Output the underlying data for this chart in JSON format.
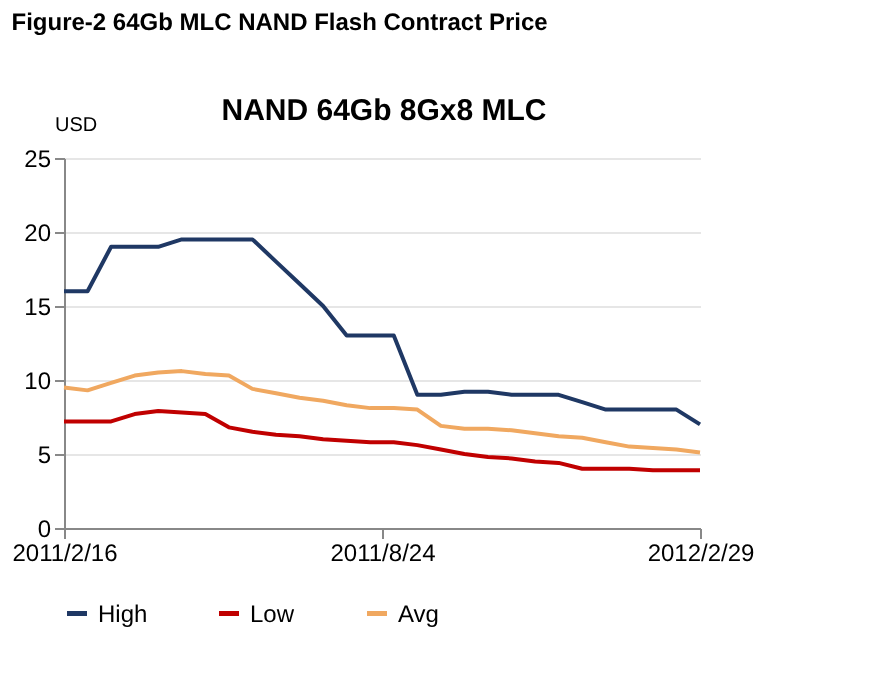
{
  "chart_data": {
    "type": "line",
    "title": "Figure-2 64Gb MLC NAND Flash Contract Price",
    "subtitle": "NAND 64Gb 8Gx8 MLC",
    "ylabel": "USD",
    "x": [
      "2011-02-16",
      "2011-03-02",
      "2011-03-16",
      "2011-03-30",
      "2011-04-13",
      "2011-04-27",
      "2011-05-11",
      "2011-05-25",
      "2011-06-08",
      "2011-06-22",
      "2011-07-06",
      "2011-07-20",
      "2011-08-03",
      "2011-08-17",
      "2011-08-31",
      "2011-09-14",
      "2011-09-28",
      "2011-10-12",
      "2011-10-26",
      "2011-11-09",
      "2011-11-23",
      "2011-12-07",
      "2011-12-21",
      "2012-01-04",
      "2012-01-18",
      "2012-02-01",
      "2012-02-15",
      "2012-02-29"
    ],
    "series": [
      {
        "name": "High",
        "color": "#1f3864",
        "values": [
          16,
          16,
          19,
          19,
          19,
          19.5,
          19.5,
          19.5,
          19.5,
          18,
          16.5,
          15,
          13,
          13,
          13,
          9,
          9,
          9.2,
          9.2,
          9,
          9,
          9,
          8.5,
          8,
          8,
          8,
          8,
          7
        ]
      },
      {
        "name": "Low",
        "color": "#c00000",
        "values": [
          7.2,
          7.2,
          7.2,
          7.7,
          7.9,
          7.8,
          7.7,
          6.8,
          6.5,
          6.3,
          6.2,
          6,
          5.9,
          5.8,
          5.8,
          5.6,
          5.3,
          5,
          4.8,
          4.7,
          4.5,
          4.4,
          4,
          4,
          4,
          3.9,
          3.9,
          3.9
        ]
      },
      {
        "name": "Avg",
        "color": "#f0a860",
        "values": [
          9.5,
          9.3,
          9.8,
          10.3,
          10.5,
          10.6,
          10.4,
          10.3,
          9.4,
          9.1,
          8.8,
          8.6,
          8.3,
          8.1,
          8.1,
          8,
          6.9,
          6.7,
          6.7,
          6.6,
          6.4,
          6.2,
          6.1,
          5.8,
          5.5,
          5.4,
          5.3,
          5.1
        ]
      }
    ],
    "xlim": [
      "2011-02-16",
      "2012-02-29"
    ],
    "xticks": [
      {
        "value": "2011-02-16",
        "label": "2011/2/16"
      },
      {
        "value": "2011-08-24",
        "label": "2011/8/24"
      },
      {
        "value": "2012-02-29",
        "label": "2012/2/29"
      }
    ],
    "ylim": [
      0,
      25
    ],
    "yticks": [
      0,
      5,
      10,
      15,
      20,
      25
    ],
    "grid": "y",
    "legend": "bottom",
    "marker": "none",
    "line_style": "solid"
  }
}
